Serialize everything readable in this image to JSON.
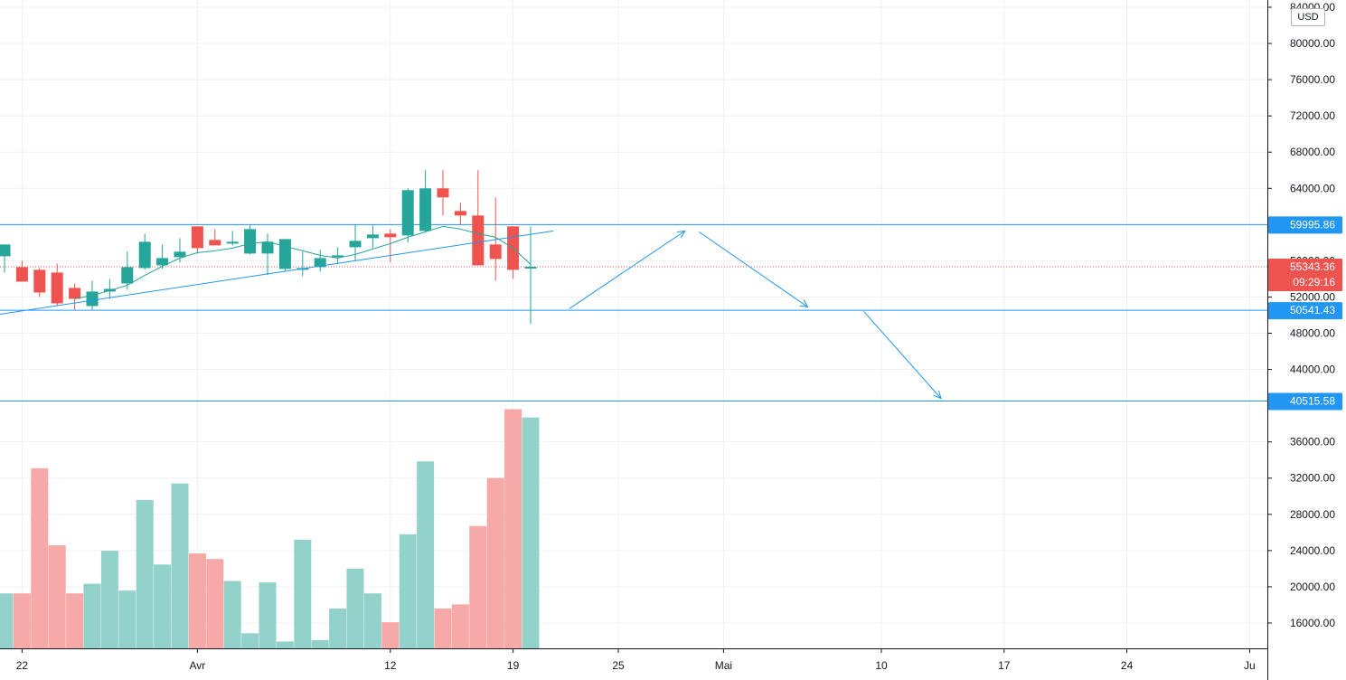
{
  "chart_data": {
    "type": "candlestick",
    "currency": "USD",
    "colors": {
      "up": "#26a69a",
      "down": "#ef5350",
      "volume_up": "#93d2cb",
      "volume_down": "#f6a9a7",
      "line": "#2196f3",
      "grid": "#eef0f3"
    },
    "x_axis_labels": [
      {
        "label": "22",
        "index": 1
      },
      {
        "label": "Avr",
        "index": 11
      },
      {
        "label": "12",
        "index": 22
      },
      {
        "label": "19",
        "index": 29
      },
      {
        "label": "25",
        "index": 35
      },
      {
        "label": "Mai",
        "index": 41
      },
      {
        "label": "10",
        "index": 50
      },
      {
        "label": "17",
        "index": 57
      },
      {
        "label": "24",
        "index": 64
      },
      {
        "label": "Ju",
        "index": 71
      }
    ],
    "y_axis": {
      "ticks": [
        "84000.00",
        "80000.00",
        "76000.00",
        "72000.00",
        "68000.00",
        "64000.00",
        "56000.00",
        "52000.00",
        "48000.00",
        "44000.00",
        "36000.00",
        "32000.00",
        "28000.00",
        "24000.00",
        "20000.00",
        "16000.00"
      ],
      "range": [
        13600,
        84300
      ]
    },
    "candles": [
      {
        "o": 56500,
        "h": 57500,
        "l": 54700,
        "c": 57800
      },
      {
        "o": 55300,
        "h": 56000,
        "l": 53800,
        "c": 53700
      },
      {
        "o": 55000,
        "h": 55200,
        "l": 52000,
        "c": 52500
      },
      {
        "o": 54700,
        "h": 55700,
        "l": 51000,
        "c": 51300
      },
      {
        "o": 53000,
        "h": 53500,
        "l": 50600,
        "c": 51800
      },
      {
        "o": 51000,
        "h": 53800,
        "l": 50500,
        "c": 52600
      },
      {
        "o": 52600,
        "h": 54000,
        "l": 51800,
        "c": 52900
      },
      {
        "o": 53500,
        "h": 57000,
        "l": 52800,
        "c": 55300
      },
      {
        "o": 55200,
        "h": 59000,
        "l": 55000,
        "c": 58100
      },
      {
        "o": 55500,
        "h": 57800,
        "l": 55100,
        "c": 56300
      },
      {
        "o": 56400,
        "h": 58500,
        "l": 55800,
        "c": 57000
      },
      {
        "o": 59800,
        "h": 59800,
        "l": 56800,
        "c": 57400
      },
      {
        "o": 58300,
        "h": 59500,
        "l": 57800,
        "c": 57700
      },
      {
        "o": 58000,
        "h": 59300,
        "l": 57700,
        "c": 58100
      },
      {
        "o": 56800,
        "h": 60000,
        "l": 56700,
        "c": 59500
      },
      {
        "o": 56800,
        "h": 59000,
        "l": 54400,
        "c": 58100
      },
      {
        "o": 55100,
        "h": 58300,
        "l": 54900,
        "c": 58400
      },
      {
        "o": 55000,
        "h": 57000,
        "l": 54300,
        "c": 55200
      },
      {
        "o": 55300,
        "h": 57200,
        "l": 54800,
        "c": 56300
      },
      {
        "o": 56400,
        "h": 57500,
        "l": 55600,
        "c": 56600
      },
      {
        "o": 57500,
        "h": 60000,
        "l": 56000,
        "c": 58200
      },
      {
        "o": 58500,
        "h": 60000,
        "l": 57400,
        "c": 58900
      },
      {
        "o": 59000,
        "h": 59500,
        "l": 55800,
        "c": 58600
      },
      {
        "o": 58800,
        "h": 64000,
        "l": 58000,
        "c": 63800
      },
      {
        "o": 59300,
        "h": 66000,
        "l": 59100,
        "c": 64000
      },
      {
        "o": 64000,
        "h": 66000,
        "l": 61000,
        "c": 63000
      },
      {
        "o": 61500,
        "h": 62400,
        "l": 60000,
        "c": 61000
      },
      {
        "o": 61000,
        "h": 66000,
        "l": 55500,
        "c": 55500
      },
      {
        "o": 57800,
        "h": 63000,
        "l": 53800,
        "c": 56200
      },
      {
        "o": 59800,
        "h": 59800,
        "l": 54000,
        "c": 55000
      },
      {
        "o": 55300,
        "h": 59800,
        "l": 49000,
        "c": 55343
      }
    ],
    "volumes": [
      17800,
      17800,
      26900,
      21300,
      17800,
      18500,
      20900,
      18000,
      24600,
      19900,
      25800,
      20700,
      20300,
      18700,
      14900,
      18600,
      14300,
      21700,
      14400,
      16700,
      19600,
      17800,
      15700,
      22100,
      27400,
      16700,
      17000,
      22700,
      26200,
      31200,
      30600
    ],
    "trendline": {
      "from": {
        "index": -3,
        "price": 49300
      },
      "to": {
        "index": 31.3,
        "price": 59300
      }
    },
    "moving_average": [
      null,
      null,
      null,
      null,
      51800,
      52200,
      52700,
      53300,
      54400,
      55400,
      56300,
      56900,
      57100,
      57400,
      57900,
      58100,
      57600,
      57100,
      56600,
      56300,
      56700,
      57300,
      57900,
      58600,
      59200,
      59800,
      59500,
      59000,
      58600,
      57400,
      55600
    ],
    "levels": [
      {
        "label": "59995.86",
        "price": 59995.86,
        "color": "#2196f3"
      },
      {
        "label": "50541.43",
        "price": 50541.43,
        "color": "#2196f3"
      },
      {
        "label": "40515.58",
        "price": 40515.58,
        "color": "#2196f3"
      }
    ],
    "last_price": {
      "label": "55343.36",
      "price": 55343.36,
      "countdown": "09:29:16",
      "color": "#ef5350"
    },
    "projection_arrows": [
      {
        "from": {
          "index": 32.2,
          "price": 50700
        },
        "to": {
          "index": 38.8,
          "price": 59300
        }
      },
      {
        "from": {
          "index": 39.6,
          "price": 59200
        },
        "to": {
          "index": 45.8,
          "price": 50900
        }
      },
      {
        "from": {
          "index": 49,
          "price": 50400
        },
        "to": {
          "index": 53.4,
          "price": 40800
        }
      }
    ]
  }
}
